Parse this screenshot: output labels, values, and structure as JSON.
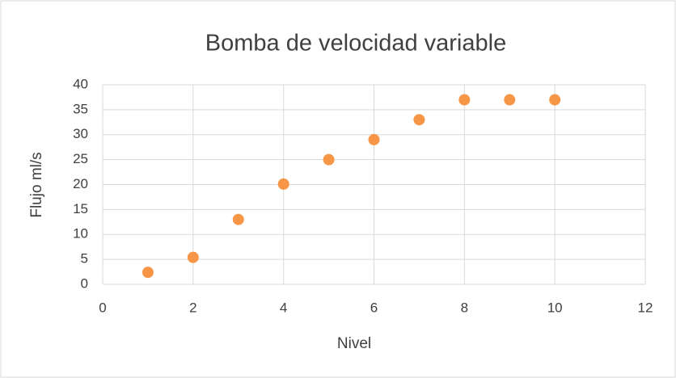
{
  "chart_data": {
    "type": "scatter",
    "title": "Bomba de velocidad variable",
    "xlabel": "Nivel",
    "ylabel": "Flujo ml/s",
    "x": [
      1,
      2,
      3,
      4,
      5,
      6,
      7,
      8,
      9,
      10
    ],
    "values": [
      2.4,
      5.4,
      13,
      20.1,
      25,
      29,
      33,
      37,
      37,
      37
    ],
    "color": "#f79646",
    "xlim": [
      0,
      12
    ],
    "xticks": [
      0,
      2,
      4,
      6,
      8,
      10,
      12
    ],
    "ylim": [
      0,
      40
    ],
    "yticks": [
      0,
      5,
      10,
      15,
      20,
      25,
      30,
      35,
      40
    ],
    "grid": true
  }
}
